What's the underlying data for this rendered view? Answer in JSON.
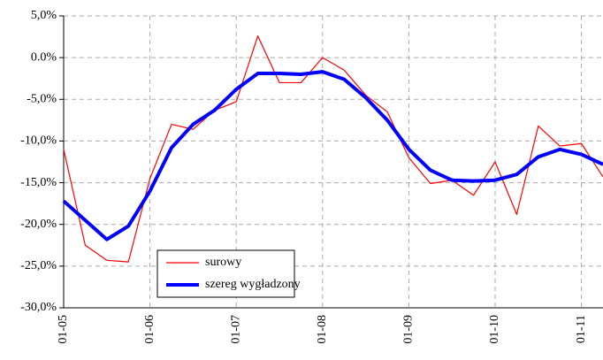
{
  "chart_data": {
    "type": "line",
    "categories": [
      "01-05",
      null,
      null,
      null,
      "01-06",
      null,
      null,
      null,
      "01-07",
      null,
      null,
      null,
      "01-08",
      null,
      null,
      null,
      "01-09",
      null,
      null,
      null,
      "01-10",
      null,
      null,
      null,
      "01-11",
      null
    ],
    "series": [
      {
        "name": "surowy",
        "color": "#ff0000",
        "values": [
          -11,
          -22.5,
          -24.3,
          -24.5,
          -14.5,
          -8,
          -8.6,
          -6.3,
          -5.3,
          2.6,
          -3,
          -3,
          0,
          -1.5,
          -4.5,
          -6.5,
          -12,
          -15.1,
          -14.7,
          -16.5,
          -12.5,
          -18.8,
          -8.2,
          -10.6,
          -10.3,
          -14.3
        ]
      },
      {
        "name": "szereg wygładzony",
        "color": "#0000ff",
        "values": [
          -17.2,
          -19.5,
          -21.8,
          -20.2,
          -16,
          -10.8,
          -8,
          -6.3,
          -3.8,
          -1.9,
          -1.9,
          -2,
          -1.7,
          -2.6,
          -4.8,
          -7.5,
          -11,
          -13.5,
          -14.7,
          -14.8,
          -14.7,
          -14,
          -11.9,
          -11,
          -11.6,
          -12.8
        ]
      }
    ],
    "ylim": [
      -30,
      5
    ],
    "yticks": [
      {
        "value": 5,
        "label": "5,0%"
      },
      {
        "value": 0,
        "label": "0.0%"
      },
      {
        "value": -5,
        "label": "-5,0%"
      },
      {
        "value": -10,
        "label": "-10,0%"
      },
      {
        "value": -15,
        "label": "-15,0%"
      },
      {
        "value": -20,
        "label": "-20,0%"
      },
      {
        "value": -25,
        "label": "-25,0%"
      },
      {
        "value": -30,
        "label": "-30,0%"
      }
    ],
    "grid": true
  }
}
